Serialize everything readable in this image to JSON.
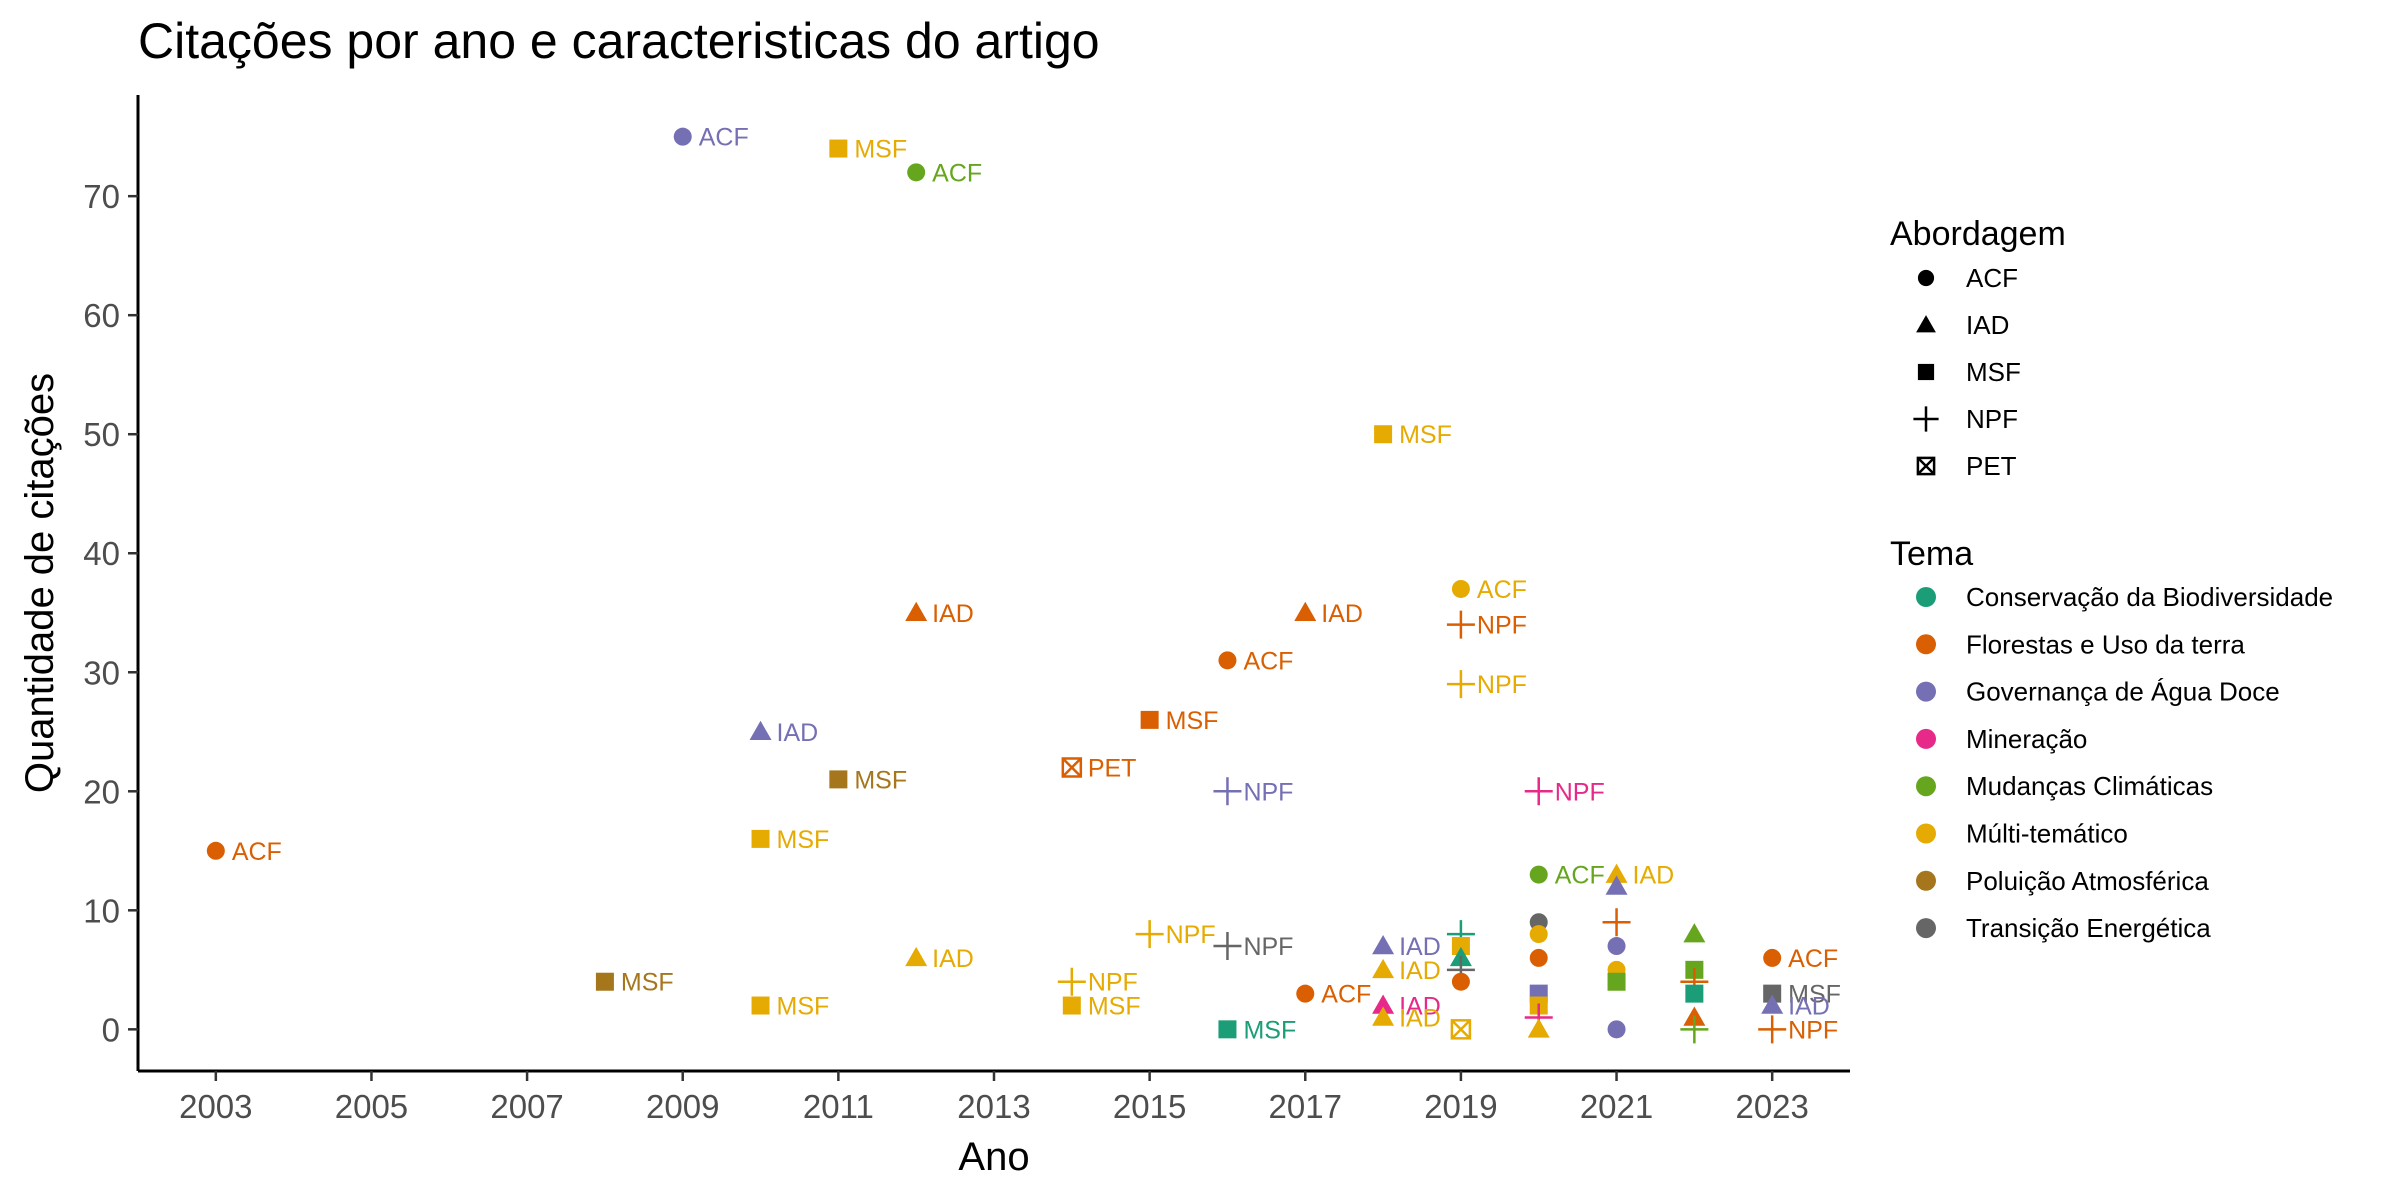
{
  "chart_data": {
    "type": "scatter",
    "title": "Citações por ano e caracteristicas do artigo",
    "xlabel": "Ano",
    "ylabel": "Quantidade de citações",
    "xlim": [
      2002,
      2024
    ],
    "ylim": [
      -3.5,
      78.5
    ],
    "x_ticks": [
      2003,
      2005,
      2007,
      2009,
      2011,
      2013,
      2015,
      2017,
      2019,
      2021,
      2023
    ],
    "y_ticks": [
      0,
      10,
      20,
      30,
      40,
      50,
      60,
      70
    ],
    "grid": false,
    "legend_position": "right",
    "legend_shape_title": "Abordagem",
    "legend_color_title": "Tema",
    "shapes": [
      {
        "name": "ACF",
        "shape": "circle"
      },
      {
        "name": "IAD",
        "shape": "triangle"
      },
      {
        "name": "MSF",
        "shape": "square"
      },
      {
        "name": "NPF",
        "shape": "plus"
      },
      {
        "name": "PET",
        "shape": "boxcross"
      }
    ],
    "themes": [
      {
        "name": "Conservação da Biodiversidade",
        "color": "#1B9E77"
      },
      {
        "name": "Florestas e Uso da terra",
        "color": "#D95F02"
      },
      {
        "name": "Governança de Água Doce",
        "color": "#7570B3"
      },
      {
        "name": "Mineração",
        "color": "#E7298A"
      },
      {
        "name": "Mudanças Climáticas",
        "color": "#66A61E"
      },
      {
        "name": "Múlti-temático",
        "color": "#E6AB02"
      },
      {
        "name": "Poluição Atmosférica",
        "color": "#A6761D"
      },
      {
        "name": "Transição Energética",
        "color": "#666666"
      }
    ],
    "points": [
      {
        "x": 2003,
        "y": 15,
        "shape": "ACF",
        "theme": "Florestas e Uso da terra",
        "label": "ACF"
      },
      {
        "x": 2008,
        "y": 4,
        "shape": "MSF",
        "theme": "Poluição Atmosférica",
        "label": "MSF"
      },
      {
        "x": 2009,
        "y": 75,
        "shape": "ACF",
        "theme": "Governança de Água Doce",
        "label": "ACF"
      },
      {
        "x": 2010,
        "y": 25,
        "shape": "IAD",
        "theme": "Governança de Água Doce",
        "label": "IAD"
      },
      {
        "x": 2010,
        "y": 16,
        "shape": "MSF",
        "theme": "Múlti-temático",
        "label": "MSF"
      },
      {
        "x": 2010,
        "y": 2,
        "shape": "MSF",
        "theme": "Múlti-temático",
        "label": "MSF"
      },
      {
        "x": 2011,
        "y": 74,
        "shape": "MSF",
        "theme": "Múlti-temático",
        "label": "MSF"
      },
      {
        "x": 2011,
        "y": 21,
        "shape": "MSF",
        "theme": "Poluição Atmosférica",
        "label": "MSF"
      },
      {
        "x": 2012,
        "y": 72,
        "shape": "ACF",
        "theme": "Mudanças Climáticas",
        "label": "ACF"
      },
      {
        "x": 2012,
        "y": 35,
        "shape": "IAD",
        "theme": "Florestas e Uso da terra",
        "label": "IAD"
      },
      {
        "x": 2012,
        "y": 6,
        "shape": "IAD",
        "theme": "Múlti-temático",
        "label": "IAD"
      },
      {
        "x": 2014,
        "y": 22,
        "shape": "PET",
        "theme": "Florestas e Uso da terra",
        "label": "PET"
      },
      {
        "x": 2014,
        "y": 4,
        "shape": "NPF",
        "theme": "Múlti-temático",
        "label": "NPF"
      },
      {
        "x": 2014,
        "y": 2,
        "shape": "MSF",
        "theme": "Múlti-temático",
        "label": "MSF"
      },
      {
        "x": 2015,
        "y": 26,
        "shape": "MSF",
        "theme": "Florestas e Uso da terra",
        "label": "MSF"
      },
      {
        "x": 2015,
        "y": 8,
        "shape": "NPF",
        "theme": "Múlti-temático",
        "label": "NPF"
      },
      {
        "x": 2016,
        "y": 31,
        "shape": "ACF",
        "theme": "Florestas e Uso da terra",
        "label": "ACF"
      },
      {
        "x": 2016,
        "y": 20,
        "shape": "NPF",
        "theme": "Governança de Água Doce",
        "label": "NPF"
      },
      {
        "x": 2016,
        "y": 7,
        "shape": "NPF",
        "theme": "Transição Energética",
        "label": "NPF"
      },
      {
        "x": 2016,
        "y": 0,
        "shape": "MSF",
        "theme": "Conservação da Biodiversidade",
        "label": "MSF"
      },
      {
        "x": 2017,
        "y": 35,
        "shape": "IAD",
        "theme": "Florestas e Uso da terra",
        "label": "IAD"
      },
      {
        "x": 2017,
        "y": 3,
        "shape": "ACF",
        "theme": "Florestas e Uso da terra",
        "label": "ACF"
      },
      {
        "x": 2018,
        "y": 50,
        "shape": "MSF",
        "theme": "Múlti-temático",
        "label": "MSF"
      },
      {
        "x": 2018,
        "y": 7,
        "shape": "IAD",
        "theme": "Governança de Água Doce",
        "label": "IAD"
      },
      {
        "x": 2018,
        "y": 5,
        "shape": "IAD",
        "theme": "Múlti-temático",
        "label": "IAD"
      },
      {
        "x": 2018,
        "y": 2,
        "shape": "IAD",
        "theme": "Mineração",
        "label": "IAD"
      },
      {
        "x": 2018,
        "y": 1,
        "shape": "IAD",
        "theme": "Múlti-temático",
        "label": "IAD"
      },
      {
        "x": 2019,
        "y": 37,
        "shape": "ACF",
        "theme": "Múlti-temático",
        "label": "ACF"
      },
      {
        "x": 2019,
        "y": 34,
        "shape": "NPF",
        "theme": "Florestas e Uso da terra",
        "label": "NPF"
      },
      {
        "x": 2019,
        "y": 29,
        "shape": "NPF",
        "theme": "Múlti-temático",
        "label": "NPF"
      },
      {
        "x": 2019,
        "y": 8,
        "shape": "NPF",
        "theme": "Conservação da Biodiversidade"
      },
      {
        "x": 2019,
        "y": 7,
        "shape": "MSF",
        "theme": "Múlti-temático"
      },
      {
        "x": 2019,
        "y": 6,
        "shape": "IAD",
        "theme": "Conservação da Biodiversidade"
      },
      {
        "x": 2019,
        "y": 5,
        "shape": "NPF",
        "theme": "Transição Energética"
      },
      {
        "x": 2019,
        "y": 4,
        "shape": "ACF",
        "theme": "Florestas e Uso da terra"
      },
      {
        "x": 2019,
        "y": 0,
        "shape": "PET",
        "theme": "Múlti-temático"
      },
      {
        "x": 2020,
        "y": 20,
        "shape": "NPF",
        "theme": "Mineração",
        "label": "NPF"
      },
      {
        "x": 2020,
        "y": 13,
        "shape": "ACF",
        "theme": "Mudanças Climáticas",
        "label": "ACF"
      },
      {
        "x": 2020,
        "y": 9,
        "shape": "ACF",
        "theme": "Transição Energética"
      },
      {
        "x": 2020,
        "y": 8,
        "shape": "ACF",
        "theme": "Múlti-temático"
      },
      {
        "x": 2020,
        "y": 6,
        "shape": "ACF",
        "theme": "Florestas e Uso da terra"
      },
      {
        "x": 2020,
        "y": 3,
        "shape": "MSF",
        "theme": "Governança de Água Doce"
      },
      {
        "x": 2020,
        "y": 2,
        "shape": "MSF",
        "theme": "Múlti-temático"
      },
      {
        "x": 2020,
        "y": 1,
        "shape": "NPF",
        "theme": "Mineração"
      },
      {
        "x": 2020,
        "y": 0,
        "shape": "IAD",
        "theme": "Múlti-temático"
      },
      {
        "x": 2021,
        "y": 13,
        "shape": "IAD",
        "theme": "Múlti-temático",
        "label": "IAD"
      },
      {
        "x": 2021,
        "y": 12,
        "shape": "IAD",
        "theme": "Governança de Água Doce"
      },
      {
        "x": 2021,
        "y": 9,
        "shape": "NPF",
        "theme": "Florestas e Uso da terra"
      },
      {
        "x": 2021,
        "y": 7,
        "shape": "ACF",
        "theme": "Governança de Água Doce"
      },
      {
        "x": 2021,
        "y": 5,
        "shape": "ACF",
        "theme": "Múlti-temático"
      },
      {
        "x": 2021,
        "y": 4,
        "shape": "MSF",
        "theme": "Mudanças Climáticas"
      },
      {
        "x": 2021,
        "y": 0,
        "shape": "ACF",
        "theme": "Governança de Água Doce"
      },
      {
        "x": 2022,
        "y": 8,
        "shape": "IAD",
        "theme": "Mudanças Climáticas"
      },
      {
        "x": 2022,
        "y": 5,
        "shape": "MSF",
        "theme": "Mudanças Climáticas"
      },
      {
        "x": 2022,
        "y": 4,
        "shape": "NPF",
        "theme": "Florestas e Uso da terra"
      },
      {
        "x": 2022,
        "y": 3,
        "shape": "MSF",
        "theme": "Conservação da Biodiversidade"
      },
      {
        "x": 2022,
        "y": 1,
        "shape": "IAD",
        "theme": "Florestas e Uso da terra"
      },
      {
        "x": 2022,
        "y": 0,
        "shape": "NPF",
        "theme": "Mudanças Climáticas"
      },
      {
        "x": 2023,
        "y": 6,
        "shape": "ACF",
        "theme": "Florestas e Uso da terra",
        "label": "ACF"
      },
      {
        "x": 2023,
        "y": 3,
        "shape": "MSF",
        "theme": "Transição Energética",
        "label": "MSF"
      },
      {
        "x": 2023,
        "y": 2,
        "shape": "IAD",
        "theme": "Governança de Água Doce",
        "label": "IAD"
      },
      {
        "x": 2023,
        "y": 0,
        "shape": "NPF",
        "theme": "Florestas e Uso da terra",
        "label": "NPF"
      }
    ]
  }
}
